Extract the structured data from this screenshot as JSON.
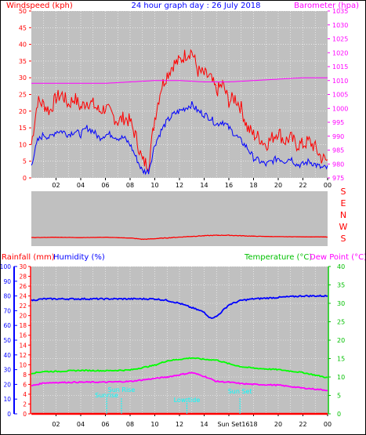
{
  "header": {
    "title": "24 hour graph day : 26 July 2018",
    "windspeed_label": "Windspeed (kph)",
    "barometer_label": "Barometer (hpa)"
  },
  "colors": {
    "plot_bg": "#c0c0c0",
    "windspeed": "#ff0000",
    "windgust": "#0000ff",
    "barometer": "#ff00ff",
    "humidity": "#0000ff",
    "temperature": "#00ff00",
    "dewpoint": "#ff00ff",
    "rainfall": "#ff0000",
    "grid": "#ffffff",
    "cyan_marks": "#00ffff"
  },
  "compass_labels": [
    "S",
    "E",
    "N",
    "W",
    "S"
  ],
  "lower": {
    "rainfall_label": "Rainfall (mm)",
    "humidity_label": "Humidity (%)",
    "temp_label": "Temperature (°C)",
    "dew_label": "Dew Point (°C)",
    "events": [
      {
        "label": "Sun Rise",
        "hour": 7.3
      },
      {
        "label": "Sunrise",
        "hour": 6.1
      },
      {
        "label": "Low tide",
        "hour": 12.6
      },
      {
        "label": "Sun Set",
        "hour": 16.9
      }
    ],
    "x_tick_override": {
      "hour": 16,
      "label": "16"
    },
    "overlap_label": "Sun Set16"
  },
  "chart_data": [
    {
      "type": "line",
      "title": "24 hour graph day : 26 July 2018",
      "x_ticks": [
        "02",
        "04",
        "06",
        "08",
        "10",
        "12",
        "14",
        "16",
        "18",
        "20",
        "22",
        "00"
      ],
      "xlim": [
        0,
        24
      ],
      "left_axis": {
        "label": "Windspeed (kph)",
        "ylim": [
          0,
          50
        ],
        "ticks": [
          0,
          5,
          10,
          15,
          20,
          25,
          30,
          35,
          40,
          45,
          50
        ]
      },
      "right_axis": {
        "label": "Barometer (hpa)",
        "ylim": [
          975,
          1035
        ],
        "ticks": [
          975,
          980,
          985,
          990,
          995,
          1000,
          1005,
          1010,
          1015,
          1020,
          1025,
          1030,
          1035
        ]
      },
      "series": [
        {
          "name": "Windspeed",
          "axis": "left",
          "color": "#ff0000",
          "x": [
            0,
            0.5,
            1,
            1.5,
            2,
            2.5,
            3,
            3.5,
            4,
            4.5,
            5,
            5.5,
            6,
            6.5,
            7,
            7.5,
            8,
            8.5,
            9,
            9.5,
            10,
            10.5,
            11,
            11.5,
            12,
            12.5,
            13,
            13.5,
            14,
            14.5,
            15,
            15.5,
            16,
            16.5,
            17,
            17.5,
            18,
            18.5,
            19,
            19.5,
            20,
            20.5,
            21,
            21.5,
            22,
            22.5,
            23,
            23.5,
            24
          ],
          "values": [
            10,
            23,
            22,
            20,
            24,
            25,
            22,
            24,
            21,
            23,
            22,
            20,
            21,
            19,
            17,
            18,
            17,
            12,
            5,
            4,
            18,
            27,
            31,
            34,
            35,
            37,
            38,
            32,
            31,
            30,
            26,
            28,
            23,
            24,
            21,
            15,
            13,
            12,
            10,
            12,
            14,
            11,
            12,
            10,
            10,
            11,
            9,
            6,
            5
          ]
        },
        {
          "name": "Wind Gust",
          "axis": "left",
          "color": "#0000ff",
          "x": [
            0,
            0.5,
            1,
            1.5,
            2,
            2.5,
            3,
            3.5,
            4,
            4.5,
            5,
            5.5,
            6,
            6.5,
            7,
            7.5,
            8,
            8.5,
            9,
            9.5,
            10,
            10.5,
            11,
            11.5,
            12,
            12.5,
            13,
            13.5,
            14,
            14.5,
            15,
            15.5,
            16,
            16.5,
            17,
            17.5,
            18,
            18.5,
            19,
            19.5,
            20,
            20.5,
            21,
            21.5,
            22,
            22.5,
            23,
            23.5,
            24
          ],
          "values": [
            4,
            11,
            13,
            12,
            14,
            14,
            13,
            14,
            13,
            15,
            14,
            12,
            13,
            13,
            12,
            12,
            10,
            6,
            2,
            2,
            10,
            14,
            17,
            19,
            20,
            21,
            22,
            20,
            19,
            18,
            16,
            17,
            15,
            13,
            11,
            9,
            6,
            5,
            4,
            5,
            6,
            5,
            6,
            4,
            4,
            5,
            4,
            3,
            3
          ]
        },
        {
          "name": "Barometer",
          "axis": "right",
          "color": "#ff00ff",
          "x": [
            0,
            2,
            4,
            6,
            8,
            10,
            12,
            14,
            16,
            18,
            20,
            22,
            24
          ],
          "values": [
            1009,
            1009,
            1009,
            1009,
            1009.5,
            1010,
            1010,
            1009.5,
            1009.5,
            1010,
            1010.5,
            1011,
            1011
          ]
        }
      ]
    },
    {
      "type": "line",
      "title": "",
      "xlim": [
        0,
        24
      ],
      "y_labels": [
        "S",
        "E",
        "N",
        "W",
        "S"
      ],
      "series": [
        {
          "name": "Wind Direction",
          "color": "#ff0000",
          "x": [
            0,
            2,
            4,
            6,
            8,
            9,
            9.5,
            10,
            11,
            12,
            13,
            14,
            15,
            16,
            17,
            18,
            20,
            22,
            24
          ],
          "values": [
            236,
            238,
            236,
            238,
            233,
            225,
            226,
            229,
            234,
            239,
            244,
            248,
            251,
            251,
            248,
            245,
            242,
            241,
            240
          ]
        }
      ]
    },
    {
      "type": "line",
      "title": "",
      "x_ticks": [
        "02",
        "04",
        "06",
        "08",
        "10",
        "12",
        "14",
        "16",
        "18",
        "20",
        "22",
        "00"
      ],
      "xlim": [
        0,
        24
      ],
      "axes": [
        {
          "label": "Rainfall (mm)",
          "ylim": [
            0,
            100
          ],
          "ticks": [
            0,
            10,
            20,
            30,
            40,
            50,
            60,
            70,
            80,
            90,
            100
          ]
        },
        {
          "label": "Humidity (%)",
          "ylim": [
            0,
            30
          ],
          "ticks": [
            0,
            2,
            4,
            6,
            8,
            10,
            12,
            14,
            16,
            18,
            20,
            22,
            24,
            26,
            28,
            30
          ]
        },
        {
          "label": "Temperature (°C)",
          "ylim": [
            0,
            40
          ],
          "ticks": [
            0,
            5,
            10,
            15,
            20,
            25,
            30,
            35,
            40
          ]
        }
      ],
      "series": [
        {
          "name": "Humidity",
          "axis": "Humidity (%)",
          "color": "#0000ff",
          "x": [
            0,
            1,
            2,
            4,
            6,
            8,
            10,
            11,
            12,
            13,
            14,
            14.5,
            15,
            15.5,
            16,
            17,
            18,
            20,
            22,
            24
          ],
          "values": [
            77,
            78,
            78,
            78,
            78,
            78,
            78,
            77,
            75,
            72,
            69,
            65,
            66,
            70,
            74,
            77,
            78,
            79,
            80,
            80
          ]
        },
        {
          "name": "Temperature",
          "axis": "Temperature (°C)",
          "color": "#00ff00",
          "x": [
            0,
            1,
            2,
            4,
            6,
            8,
            10,
            11,
            12,
            13,
            14,
            15,
            16,
            17,
            18,
            20,
            22,
            24
          ],
          "values": [
            11,
            11.5,
            11.5,
            11.8,
            11.7,
            11.9,
            13.2,
            14.4,
            14.8,
            15.2,
            14.8,
            14.6,
            13.6,
            12.8,
            12.4,
            12,
            11.2,
            9.8
          ]
        },
        {
          "name": "Dew Point",
          "axis": "Temperature (°C)",
          "color": "#ff00ff",
          "x": [
            0,
            1,
            2,
            4,
            6,
            8,
            10,
            11,
            12,
            13,
            14,
            15,
            16,
            17,
            18,
            20,
            22,
            24
          ],
          "values": [
            7.6,
            8.4,
            8.5,
            8.6,
            8.6,
            8.8,
            9.6,
            10,
            10.6,
            11.2,
            10.2,
            8.8,
            8.6,
            8.2,
            8,
            7.8,
            7,
            6.4
          ]
        },
        {
          "name": "Rainfall",
          "axis": "Rainfall (mm)",
          "color": "#ff0000",
          "x": [
            0,
            24
          ],
          "values": [
            0,
            0
          ]
        }
      ]
    }
  ]
}
